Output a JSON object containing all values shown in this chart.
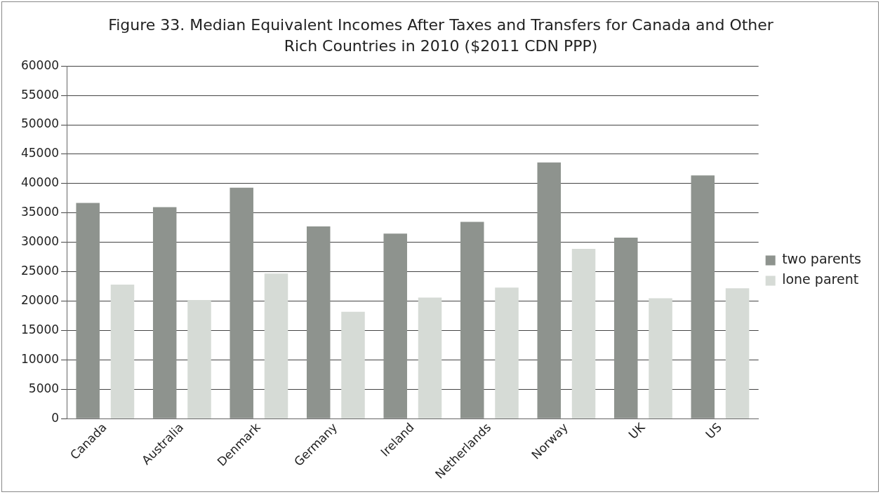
{
  "chart_data": {
    "type": "bar",
    "title": "Figure 33. Median Equivalent Incomes After Taxes and Transfers for Canada and Other Rich Countries  in 2010 ($2011 CDN PPP)",
    "categories": [
      "Canada",
      "Australia",
      "Denmark",
      "Germany",
      "Ireland",
      "Netherlands",
      "Norway",
      "UK",
      "US"
    ],
    "series": [
      {
        "name": "two parents",
        "color": "#8e938e",
        "values": [
          36700,
          36000,
          39300,
          32700,
          31500,
          33500,
          43600,
          30800,
          41400
        ]
      },
      {
        "name": "lone parent",
        "color": "#d6dbd6",
        "values": [
          22800,
          20200,
          24700,
          18200,
          20600,
          22300,
          28900,
          20500,
          22200
        ]
      }
    ],
    "ylim": [
      0,
      60000
    ],
    "yticks": [
      0,
      5000,
      10000,
      15000,
      20000,
      25000,
      30000,
      35000,
      40000,
      45000,
      50000,
      55000,
      60000
    ],
    "grid": "y",
    "legend": "right"
  }
}
